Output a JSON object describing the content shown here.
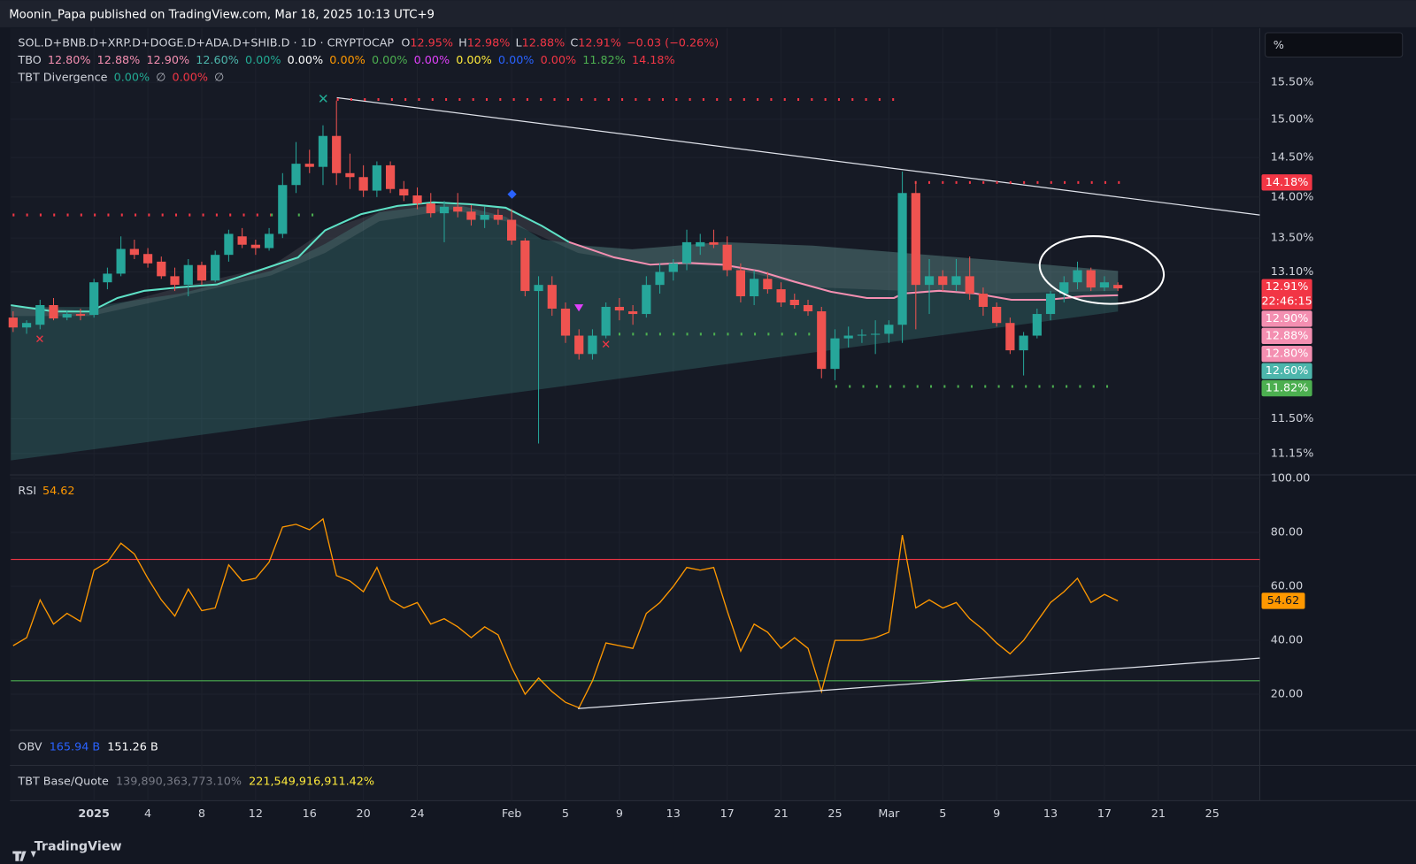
{
  "header": "Moonin_Papa published on TradingView.com, Mar 18, 2025 10:13 UTC+9",
  "footer": "TradingView",
  "unit_box": "%",
  "legend": {
    "symbol": "SOL.D+BNB.D+XRP.D+DOGE.D+ADA.D+SHIB.D · 1D · CRYPTOCAP",
    "ohlc": [
      [
        "O",
        "12.95%"
      ],
      [
        "H",
        "12.98%"
      ],
      [
        "L",
        "12.88%"
      ],
      [
        "C",
        "12.91%"
      ]
    ],
    "change": "−0.03 (−0.26%)",
    "tbo_name": "TBO",
    "tbo": [
      {
        "text": "12.80%",
        "color": "#f48fb1"
      },
      {
        "text": "12.88%",
        "color": "#f48fb1"
      },
      {
        "text": "12.90%",
        "color": "#f48fb1"
      },
      {
        "text": "12.60%",
        "color": "#4db6ac"
      },
      {
        "text": "0.00%",
        "color": "#22ab94"
      },
      {
        "text": "0.00%",
        "color": "#ffffff"
      },
      {
        "text": "0.00%",
        "color": "#ff9800"
      },
      {
        "text": "0.00%",
        "color": "#4caf50"
      },
      {
        "text": "0.00%",
        "color": "#e040fb"
      },
      {
        "text": "0.00%",
        "color": "#ffeb3b"
      },
      {
        "text": "0.00%",
        "color": "#2962ff"
      },
      {
        "text": "0.00%",
        "color": "#f23645"
      },
      {
        "text": "11.82%",
        "color": "#4caf50"
      },
      {
        "text": "14.18%",
        "color": "#f23645"
      }
    ],
    "div_name": "TBT Divergence",
    "div": [
      {
        "text": "0.00%",
        "color": "#22ab94"
      },
      {
        "text": "∅",
        "color": "#b2b5be"
      },
      {
        "text": "0.00%",
        "color": "#f23645"
      },
      {
        "text": "∅",
        "color": "#b2b5be"
      }
    ],
    "obv_name": "OBV",
    "obv": [
      {
        "text": "165.94 B",
        "color": "#2962ff"
      },
      {
        "text": "151.26 B",
        "color": "#ffffff"
      }
    ],
    "bq_name": "TBT Base/Quote",
    "bq": [
      {
        "text": "139,890,363,773.10%",
        "color": "#787b86"
      },
      {
        "text": "221,549,916,911.42%",
        "color": "#ffeb3b"
      }
    ]
  },
  "price_labels": [
    {
      "text": "14.18%",
      "color": "#f23645"
    },
    {
      "text": "12.91%",
      "color": "#f23645"
    },
    {
      "text": "12.90%",
      "color": "#f48fb1"
    },
    {
      "text": "12.88%",
      "color": "#f48fb1"
    },
    {
      "text": "12.80%",
      "color": "#f48fb1"
    },
    {
      "text": "12.60%",
      "color": "#4db6ac"
    },
    {
      "text": "11.82%",
      "color": "#4caf50"
    }
  ],
  "countdown": "22:46:15",
  "chart_data": [
    {
      "type": "candlestick",
      "log_scale": true,
      "grid": true,
      "up_color": "#26a69a",
      "down_color": "#ef5350",
      "xlim": [
        -6.17,
        86.53
      ],
      "ylim": [
        10.95,
        16.25
      ],
      "xticks": [
        {
          "value": 0,
          "label": "2025"
        },
        4,
        8,
        12,
        16,
        20,
        24,
        {
          "value": 31,
          "label": "Feb"
        },
        {
          "value": 35,
          "label": "5"
        },
        {
          "value": 39,
          "label": "9"
        },
        {
          "value": 43,
          "label": "13"
        },
        {
          "value": 47,
          "label": "17"
        },
        {
          "value": 51,
          "label": "21"
        },
        {
          "value": 55,
          "label": "25"
        },
        {
          "value": 59,
          "label": "Mar"
        },
        {
          "value": 63,
          "label": "5"
        },
        {
          "value": 67,
          "label": "9"
        },
        {
          "value": 71,
          "label": "13"
        },
        {
          "value": 75,
          "label": "17"
        },
        {
          "value": 79,
          "label": "21"
        },
        {
          "value": 83,
          "label": "25"
        }
      ],
      "yticks": [
        {
          "value": 15.5,
          "label": "15.50%"
        },
        {
          "value": 15,
          "label": "15.00%"
        },
        {
          "value": 14.5,
          "label": "14.50%"
        },
        {
          "value": 14,
          "label": "14.00%"
        },
        {
          "value": 13.5,
          "label": "13.50%"
        },
        {
          "value": 13.1,
          "label": "13.10%"
        },
        {
          "value": 11.5,
          "label": "11.50%"
        },
        {
          "value": 11.15,
          "label": "11.15%"
        }
      ],
      "x": [
        -6,
        -5,
        -4,
        -3,
        -2,
        -1,
        0,
        1,
        2,
        3,
        4,
        5,
        6,
        7,
        8,
        9,
        10,
        11,
        12,
        13,
        14,
        15,
        16,
        17,
        18,
        19,
        20,
        21,
        22,
        23,
        24,
        25,
        26,
        27,
        28,
        29,
        30,
        31,
        32,
        33,
        34,
        35,
        36,
        37,
        38,
        39,
        40,
        41,
        42,
        43,
        44,
        45,
        46,
        47,
        48,
        49,
        50,
        51,
        52,
        53,
        54,
        55,
        56,
        57,
        58,
        59,
        60,
        61,
        62,
        63,
        64,
        65,
        66,
        67,
        68,
        69,
        70,
        71,
        72,
        73,
        74,
        75,
        76
      ],
      "open": [
        12.58,
        12.47,
        12.5,
        12.72,
        12.58,
        12.62,
        12.61,
        12.98,
        13.08,
        13.37,
        13.31,
        13.22,
        13.05,
        12.95,
        13.18,
        13.0,
        13.3,
        13.52,
        13.42,
        13.38,
        13.55,
        14.15,
        14.42,
        14.38,
        14.78,
        14.3,
        14.25,
        14.08,
        14.4,
        14.1,
        14.02,
        13.92,
        13.8,
        13.88,
        13.82,
        13.72,
        13.78,
        13.72,
        13.47,
        12.88,
        12.95,
        12.68,
        12.38,
        12.18,
        12.38,
        12.7,
        12.65,
        12.62,
        12.95,
        13.1,
        13.2,
        13.4,
        13.45,
        13.42,
        13.12,
        12.82,
        13.02,
        12.9,
        12.78,
        12.72,
        12.65,
        12.02,
        12.35,
        12.38,
        12.39,
        12.4,
        12.5,
        14.05,
        12.95,
        13.05,
        12.95,
        13.05,
        12.85,
        12.7,
        12.52,
        12.22,
        12.38,
        12.62,
        12.85,
        12.98,
        13.12,
        12.92,
        12.95
      ],
      "high": [
        12.65,
        12.55,
        12.78,
        12.8,
        12.66,
        12.68,
        13.02,
        13.15,
        13.52,
        13.48,
        13.38,
        13.28,
        13.15,
        13.25,
        13.22,
        13.35,
        13.6,
        13.62,
        13.48,
        13.62,
        14.3,
        14.7,
        14.6,
        14.92,
        15.25,
        14.55,
        14.4,
        14.45,
        14.45,
        14.2,
        14.12,
        14.05,
        13.95,
        14.05,
        13.9,
        13.88,
        13.85,
        13.85,
        13.5,
        13.05,
        13.05,
        12.75,
        12.45,
        12.45,
        12.75,
        12.8,
        12.72,
        13.05,
        13.2,
        13.25,
        13.6,
        13.55,
        13.6,
        13.52,
        13.2,
        13.12,
        13.1,
        12.98,
        12.85,
        12.78,
        12.7,
        12.45,
        12.48,
        12.45,
        12.55,
        12.55,
        14.32,
        14.2,
        13.25,
        13.12,
        13.25,
        13.28,
        12.92,
        12.75,
        12.58,
        12.42,
        12.68,
        12.88,
        13.05,
        13.22,
        13.15,
        13.05,
        12.98
      ],
      "low": [
        12.42,
        12.4,
        12.45,
        12.55,
        12.55,
        12.55,
        12.58,
        12.9,
        13.05,
        13.25,
        13.15,
        13.02,
        12.88,
        12.82,
        12.95,
        12.98,
        13.22,
        13.38,
        13.3,
        13.35,
        13.5,
        14.05,
        14.3,
        14.15,
        14.15,
        14.1,
        14.0,
        14.0,
        14.05,
        13.95,
        13.85,
        13.75,
        13.45,
        13.75,
        13.65,
        13.62,
        13.66,
        13.42,
        12.82,
        11.25,
        12.6,
        12.3,
        12.12,
        12.12,
        12.35,
        12.55,
        12.5,
        12.58,
        12.85,
        13.0,
        13.12,
        13.3,
        13.38,
        13.05,
        12.75,
        12.72,
        12.85,
        12.7,
        12.68,
        12.6,
        11.92,
        11.9,
        12.25,
        12.3,
        12.18,
        12.3,
        12.3,
        12.45,
        12.62,
        12.88,
        12.88,
        12.78,
        12.6,
        12.48,
        12.18,
        11.95,
        12.35,
        12.55,
        12.75,
        12.9,
        12.88,
        12.88,
        12.88
      ],
      "close": [
        12.47,
        12.52,
        12.72,
        12.57,
        12.62,
        12.6,
        12.98,
        13.08,
        13.37,
        13.3,
        13.2,
        13.05,
        12.95,
        13.18,
        13.0,
        13.3,
        13.55,
        13.42,
        13.38,
        13.55,
        14.15,
        14.42,
        14.38,
        14.78,
        14.3,
        14.25,
        14.08,
        14.4,
        14.1,
        14.02,
        13.92,
        13.8,
        13.88,
        13.82,
        13.72,
        13.78,
        13.72,
        13.47,
        12.88,
        12.95,
        12.68,
        12.38,
        12.18,
        12.38,
        12.7,
        12.66,
        12.62,
        12.95,
        13.1,
        13.2,
        13.45,
        13.45,
        13.42,
        13.12,
        12.82,
        13.02,
        12.9,
        12.75,
        12.72,
        12.65,
        12.02,
        12.35,
        12.38,
        12.39,
        12.4,
        12.5,
        14.05,
        12.95,
        13.05,
        12.95,
        13.05,
        12.85,
        12.7,
        12.52,
        12.22,
        12.38,
        12.62,
        12.85,
        12.98,
        13.12,
        12.92,
        12.98,
        12.91
      ]
    },
    {
      "type": "line",
      "title": "RSI",
      "color": "#ff9800",
      "grid": true,
      "xlim": [
        -6.17,
        86.53
      ],
      "ylim": [
        7,
        100
      ],
      "yticks": [
        {
          "value": 100,
          "label": "100.00"
        },
        {
          "value": 80,
          "label": "80.00"
        },
        {
          "value": 60,
          "label": "60.00"
        },
        {
          "value": 40,
          "label": "40.00"
        },
        {
          "value": 20,
          "label": "20.00"
        }
      ],
      "bands": [
        {
          "value": 70,
          "color": "#f23645"
        },
        {
          "value": 25,
          "color": "#4caf50"
        }
      ],
      "x": [
        -6,
        -5,
        -4,
        -3,
        -2,
        -1,
        0,
        1,
        2,
        3,
        4,
        5,
        6,
        7,
        8,
        9,
        10,
        11,
        12,
        13,
        14,
        15,
        16,
        17,
        18,
        19,
        20,
        21,
        22,
        23,
        24,
        25,
        26,
        27,
        28,
        29,
        30,
        31,
        32,
        33,
        34,
        35,
        36,
        37,
        38,
        39,
        40,
        41,
        42,
        43,
        44,
        45,
        46,
        47,
        48,
        49,
        50,
        51,
        52,
        53,
        54,
        55,
        56,
        57,
        58,
        59,
        60,
        61,
        62,
        63,
        64,
        65,
        66,
        67,
        68,
        69,
        70,
        71,
        72,
        73,
        74,
        75,
        76
      ],
      "values": [
        38,
        41,
        55,
        46,
        50,
        47,
        66,
        69,
        76,
        72,
        63,
        55,
        49,
        59,
        51,
        52,
        68,
        62,
        63,
        69,
        82,
        83,
        81,
        85,
        64,
        62,
        58,
        67,
        55,
        52,
        54,
        46,
        48,
        45,
        41,
        45,
        42,
        30,
        20,
        26,
        21,
        17,
        15,
        25,
        39,
        38,
        37,
        50,
        54,
        60,
        67,
        66,
        67,
        51,
        36,
        46,
        43,
        37,
        41,
        37,
        21,
        40,
        40,
        40,
        41,
        43,
        79,
        52,
        55,
        52,
        54,
        48,
        44,
        39,
        35,
        40,
        47,
        54,
        58,
        63,
        54,
        57,
        54.62
      ]
    }
  ]
}
